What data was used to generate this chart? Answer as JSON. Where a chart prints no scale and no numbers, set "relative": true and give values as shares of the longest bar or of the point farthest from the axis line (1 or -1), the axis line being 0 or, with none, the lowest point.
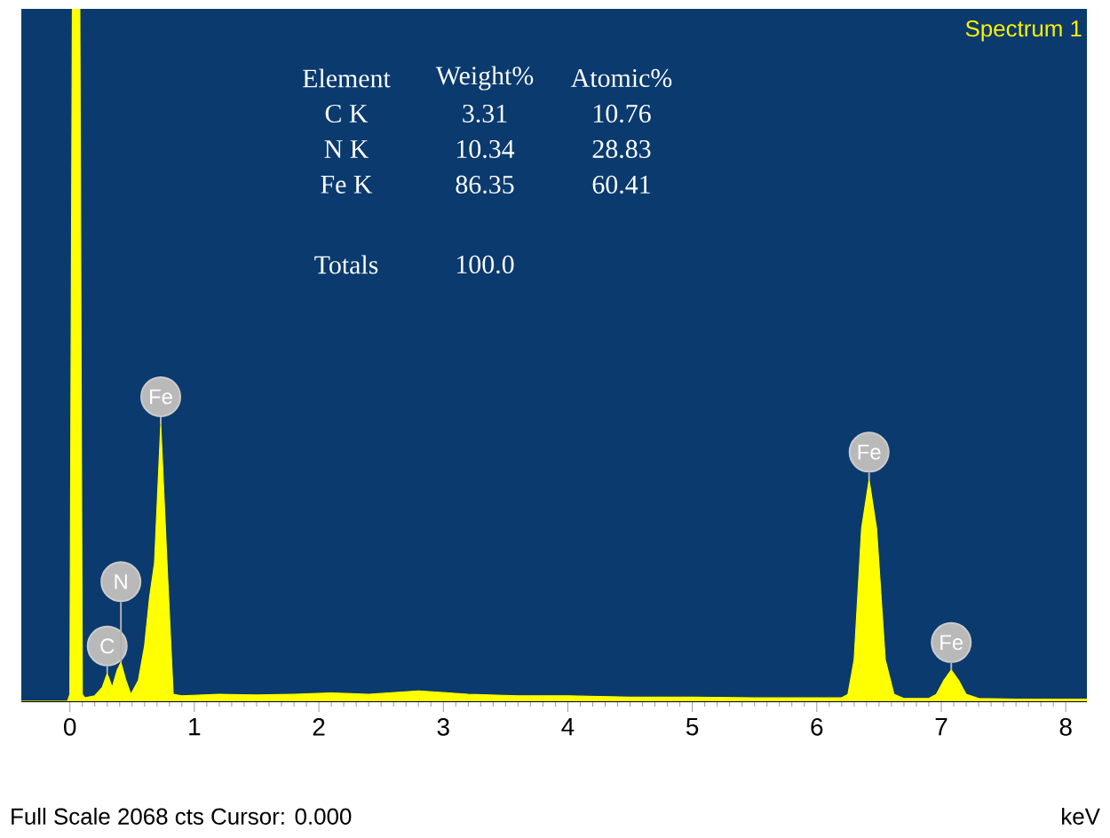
{
  "chart_data": {
    "type": "area",
    "title": "Spectrum 1",
    "xlabel": "keV",
    "relative": true,
    "xlim": [
      -0.39,
      8.17
    ],
    "xticks": [
      0,
      1,
      2,
      3,
      4,
      5,
      6,
      7,
      8
    ],
    "series": [
      {
        "color": "#ffff00",
        "x": [
          -0.39,
          -0.02,
          0.0,
          0.02,
          0.08,
          0.1,
          0.12,
          0.2,
          0.26,
          0.3,
          0.34,
          0.38,
          0.41,
          0.45,
          0.49,
          0.55,
          0.6,
          0.64,
          0.68,
          0.73,
          0.78,
          0.83,
          0.9,
          1.2,
          1.5,
          1.8,
          2.1,
          2.4,
          2.8,
          3.2,
          3.6,
          4.0,
          4.5,
          5.0,
          5.5,
          6.0,
          6.2,
          6.25,
          6.3,
          6.36,
          6.42,
          6.48,
          6.55,
          6.62,
          6.7,
          6.9,
          6.96,
          7.02,
          7.08,
          7.14,
          7.2,
          7.3,
          7.6,
          8.17
        ],
        "values": [
          0,
          0,
          0.01,
          1,
          1,
          0.01,
          0.005,
          0.008,
          0.02,
          0.04,
          0.02,
          0.045,
          0.056,
          0.03,
          0.01,
          0.03,
          0.08,
          0.15,
          0.2,
          0.4,
          0.2,
          0.01,
          0.008,
          0.01,
          0.009,
          0.01,
          0.012,
          0.01,
          0.015,
          0.01,
          0.008,
          0.008,
          0.006,
          0.006,
          0.005,
          0.005,
          0.005,
          0.01,
          0.06,
          0.25,
          0.32,
          0.25,
          0.06,
          0.01,
          0.004,
          0.004,
          0.01,
          0.03,
          0.045,
          0.03,
          0.01,
          0.004,
          0.003,
          0.003
        ]
      }
    ],
    "annotations": [
      "Element",
      "Weight%",
      "Atomic%",
      "C K",
      "3.31",
      "10.76",
      "N K",
      "10.34",
      "28.83",
      "Fe K",
      "86.35",
      "60.41",
      "Totals",
      "100.0",
      "Full Scale 2068 cts Cursor: 0.000",
      {
        "text": "C",
        "x": 0.3,
        "y": 0.04
      },
      {
        "text": "N",
        "x": 0.41,
        "y": 0.056
      },
      {
        "text": "Fe",
        "x": 0.73,
        "y": 0.4
      },
      {
        "text": "Fe",
        "x": 6.42,
        "y": 0.32
      },
      {
        "text": "Fe",
        "x": 7.08,
        "y": 0.045
      }
    ]
  }
}
